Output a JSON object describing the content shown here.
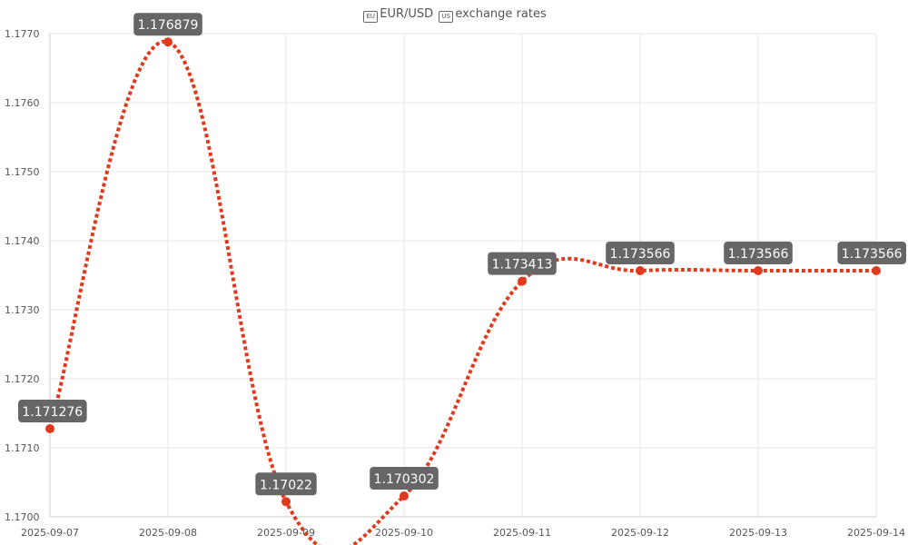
{
  "title": {
    "flag_left": "EU",
    "pair": "EUR/USD",
    "flag_right": "US",
    "suffix": "exchange rates"
  },
  "colors": {
    "line": "#e03a1e",
    "point": "#e03a1e",
    "label_bg": "#666666",
    "grid": "#e6e6e6",
    "text": "#555555"
  },
  "chart_data": {
    "type": "line",
    "title": "EUR/USD exchange rates",
    "xlabel": "",
    "ylabel": "",
    "x": [
      "2025-09-07",
      "2025-09-08",
      "2025-09-09",
      "2025-09-10",
      "2025-09-11",
      "2025-09-12",
      "2025-09-13",
      "2025-09-14"
    ],
    "series": [
      {
        "values": [
          1.171276,
          1.176879,
          1.17022,
          1.170302,
          1.173413,
          1.173566,
          1.173566,
          1.173566
        ],
        "data_labels": [
          "1.171276",
          "1.176879",
          "1.17022",
          "1.170302",
          "1.173413",
          "1.173566",
          "1.173566",
          "1.173566"
        ],
        "style": "dotted",
        "smooth": true
      }
    ],
    "ylim": [
      1.17,
      1.177
    ],
    "y_ticks": [
      "1.1700",
      "1.1710",
      "1.1720",
      "1.1730",
      "1.1740",
      "1.1750",
      "1.1760",
      "1.1770"
    ],
    "grid": true,
    "legend": "none"
  }
}
